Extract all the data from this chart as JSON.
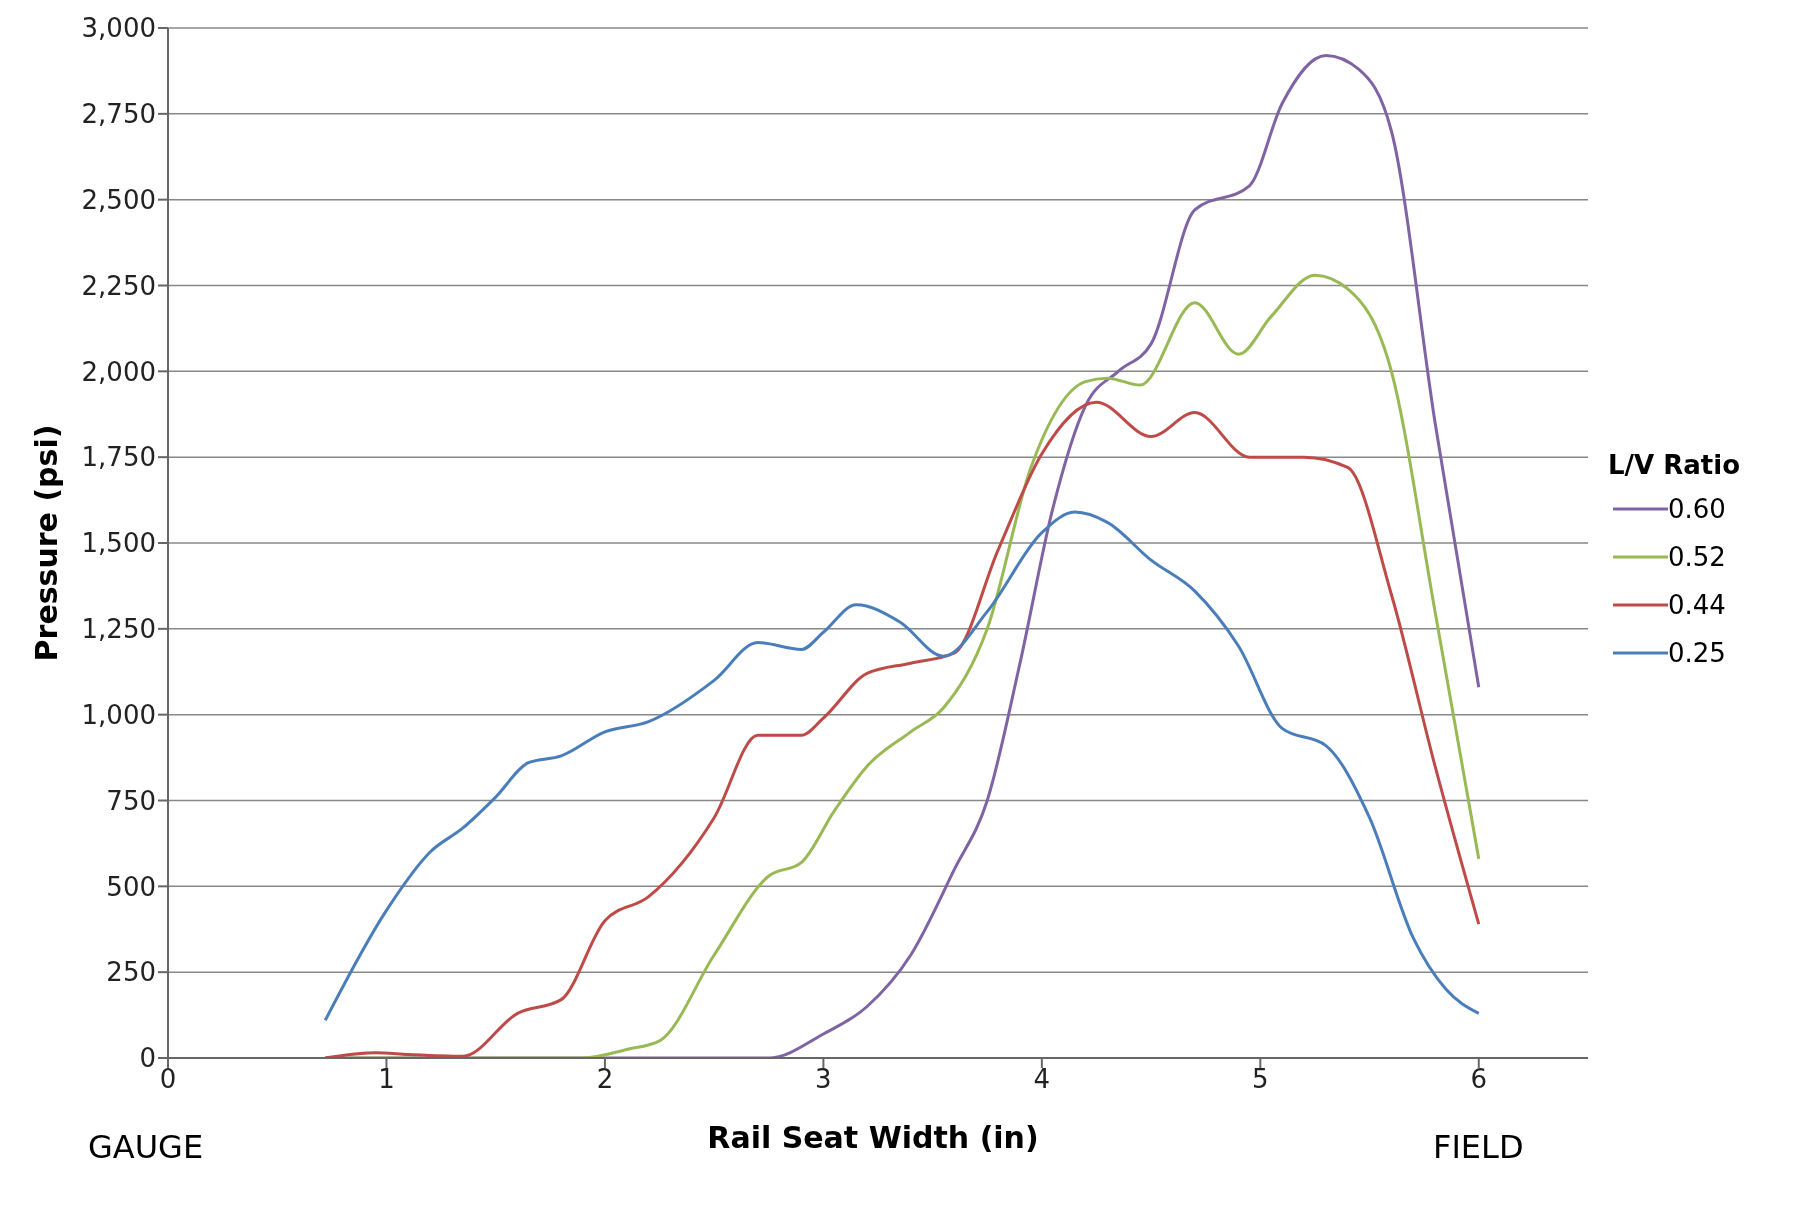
{
  "chart_data": {
    "type": "line",
    "xlabel": "Rail Seat Width (in)",
    "ylabel": "Pressure (psi)",
    "legend_title": "L/V Ratio",
    "legend": "right",
    "grid": "y",
    "marker": "none",
    "line_style": "solid",
    "annotations": [
      "GAUGE",
      "FIELD"
    ],
    "xlim": [
      0,
      6.5
    ],
    "xticks": [
      0,
      1,
      2,
      3,
      4,
      5,
      6
    ],
    "ylim": [
      0,
      3000
    ],
    "yticks": [
      {
        "value": 0,
        "label": "0"
      },
      {
        "value": 250,
        "label": "250"
      },
      {
        "value": 500,
        "label": "500"
      },
      {
        "value": 750,
        "label": "750"
      },
      {
        "value": 1000,
        "label": "1,000"
      },
      {
        "value": 1250,
        "label": "1,250"
      },
      {
        "value": 1500,
        "label": "1,500"
      },
      {
        "value": 1750,
        "label": "1,750"
      },
      {
        "value": 2000,
        "label": "2,000"
      },
      {
        "value": 2250,
        "label": "2,250"
      },
      {
        "value": 2500,
        "label": "2,500"
      },
      {
        "value": 2750,
        "label": "2,750"
      },
      {
        "value": 3000,
        "label": "3,000"
      }
    ],
    "series": [
      {
        "name": "0.60",
        "color": "#7f63a2",
        "x": [
          0.72,
          2.75,
          3.0,
          3.2,
          3.4,
          3.6,
          3.75,
          3.9,
          4.05,
          4.2,
          4.35,
          4.5,
          4.7,
          4.95,
          5.1,
          5.3,
          5.45,
          5.6,
          5.8,
          6.0
        ],
        "values": [
          0,
          0,
          70,
          150,
          300,
          550,
          750,
          1150,
          1600,
          1900,
          2000,
          2080,
          2470,
          2540,
          2780,
          2920,
          2880,
          2700,
          1850,
          1080
        ]
      },
      {
        "name": "0.52",
        "color": "#98b954",
        "x": [
          0.72,
          1.9,
          2.1,
          2.25,
          2.5,
          2.75,
          2.9,
          3.05,
          3.2,
          3.4,
          3.55,
          3.75,
          3.95,
          4.2,
          4.3,
          4.45,
          4.7,
          4.9,
          5.05,
          5.25,
          5.4,
          5.6,
          5.8,
          6.0
        ],
        "values": [
          0,
          0,
          25,
          50,
          300,
          530,
          570,
          720,
          850,
          950,
          1020,
          1250,
          1720,
          1970,
          1980,
          1960,
          2200,
          2050,
          2160,
          2280,
          2240,
          2000,
          1300,
          580
        ]
      },
      {
        "name": "0.44",
        "color": "#be4b48",
        "x": [
          0.72,
          0.95,
          1.1,
          1.35,
          1.6,
          1.8,
          2.0,
          2.2,
          2.5,
          2.7,
          2.9,
          3.0,
          3.2,
          3.4,
          3.6,
          3.8,
          4.0,
          4.25,
          4.5,
          4.7,
          4.95,
          5.2,
          5.4,
          5.6,
          5.8,
          6.0
        ],
        "values": [
          0,
          15,
          10,
          5,
          130,
          170,
          400,
          470,
          700,
          940,
          940,
          990,
          1120,
          1150,
          1180,
          1480,
          1760,
          1910,
          1810,
          1880,
          1750,
          1750,
          1720,
          1350,
          850,
          390
        ]
      },
      {
        "name": "0.25",
        "color": "#4a7ebb",
        "x": [
          0.72,
          1.0,
          1.2,
          1.35,
          1.5,
          1.65,
          1.8,
          2.0,
          2.2,
          2.5,
          2.7,
          2.9,
          3.0,
          3.15,
          3.35,
          3.55,
          3.75,
          4.0,
          4.15,
          4.3,
          4.5,
          4.7,
          4.9,
          5.1,
          5.3,
          5.5,
          5.7,
          5.85,
          6.0
        ],
        "values": [
          110,
          430,
          600,
          670,
          760,
          860,
          880,
          950,
          980,
          1100,
          1210,
          1190,
          1240,
          1320,
          1270,
          1170,
          1300,
          1530,
          1590,
          1560,
          1450,
          1360,
          1200,
          960,
          910,
          700,
          350,
          200,
          130
        ]
      }
    ]
  }
}
